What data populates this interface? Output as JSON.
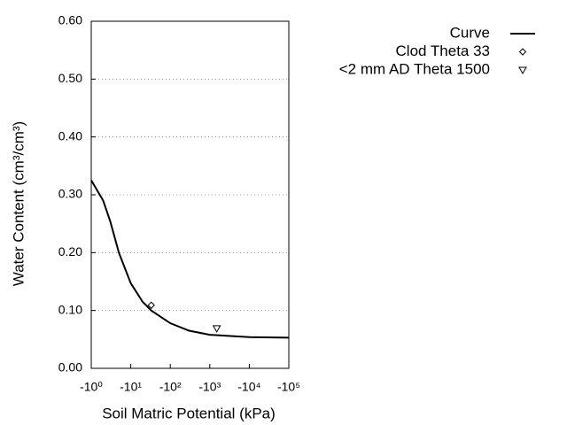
{
  "chart_data": {
    "type": "line",
    "xlabel": "Soil Matric Potential (kPa)",
    "ylabel": "Water Content (cm³/cm³)",
    "xscale": "log",
    "xlim": [
      1,
      100000
    ],
    "xticks": [
      {
        "value": 1,
        "label": "-10⁰"
      },
      {
        "value": 10,
        "label": "-10¹"
      },
      {
        "value": 100,
        "label": "-10²"
      },
      {
        "value": 1000,
        "label": "-10³"
      },
      {
        "value": 10000,
        "label": "-10⁴"
      },
      {
        "value": 100000,
        "label": "-10⁵"
      }
    ],
    "ylim": [
      0,
      0.6
    ],
    "yticks": [
      {
        "value": 0,
        "label": "0.00"
      },
      {
        "value": 0.1,
        "label": "0.10"
      },
      {
        "value": 0.2,
        "label": "0.20"
      },
      {
        "value": 0.3,
        "label": "0.30"
      },
      {
        "value": 0.4,
        "label": "0.40"
      },
      {
        "value": 0.5,
        "label": "0.50"
      },
      {
        "value": 0.6,
        "label": "0.60"
      }
    ],
    "grid": true,
    "legend": "outside-right",
    "series": [
      {
        "name": "Curve",
        "color": "#000000",
        "marker": "line",
        "x": [
          1,
          2,
          3,
          5,
          10,
          20,
          33,
          100,
          300,
          1000,
          10000,
          100000
        ],
        "values": [
          0.325,
          0.29,
          0.255,
          0.2,
          0.147,
          0.115,
          0.1,
          0.078,
          0.065,
          0.058,
          0.054,
          0.053
        ]
      },
      {
        "name": "Clod Theta 33",
        "color": "#000000",
        "marker": "diamond",
        "x": [
          33
        ],
        "values": [
          0.109
        ]
      },
      {
        "name": "<2 mm AD Theta 1500",
        "color": "#000000",
        "marker": "triangle-down",
        "x": [
          1500
        ],
        "values": [
          0.069
        ]
      }
    ]
  }
}
